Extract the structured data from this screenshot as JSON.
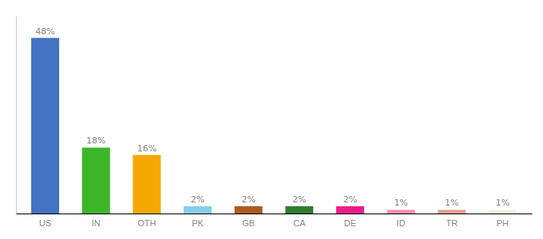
{
  "chart_data": {
    "type": "bar",
    "categories": [
      "US",
      "IN",
      "OTH",
      "PK",
      "GB",
      "CA",
      "DE",
      "ID",
      "TR",
      "PH"
    ],
    "values": [
      48,
      18,
      16,
      2,
      2,
      2,
      2,
      1,
      1,
      1
    ],
    "value_labels": [
      "48%",
      "18%",
      "16%",
      "2%",
      "2%",
      "2%",
      "2%",
      "1%",
      "1%",
      "1%"
    ],
    "colors": [
      "#4472c4",
      "#3cb628",
      "#f5a800",
      "#87ceeb",
      "#b05a20",
      "#2e7d32",
      "#e91e8c",
      "#f48fb1",
      "#e8a090",
      "#f5f0dc"
    ],
    "ylim": [
      0,
      54
    ],
    "data_labels": true,
    "tick_labels": "x",
    "grid": false
  }
}
